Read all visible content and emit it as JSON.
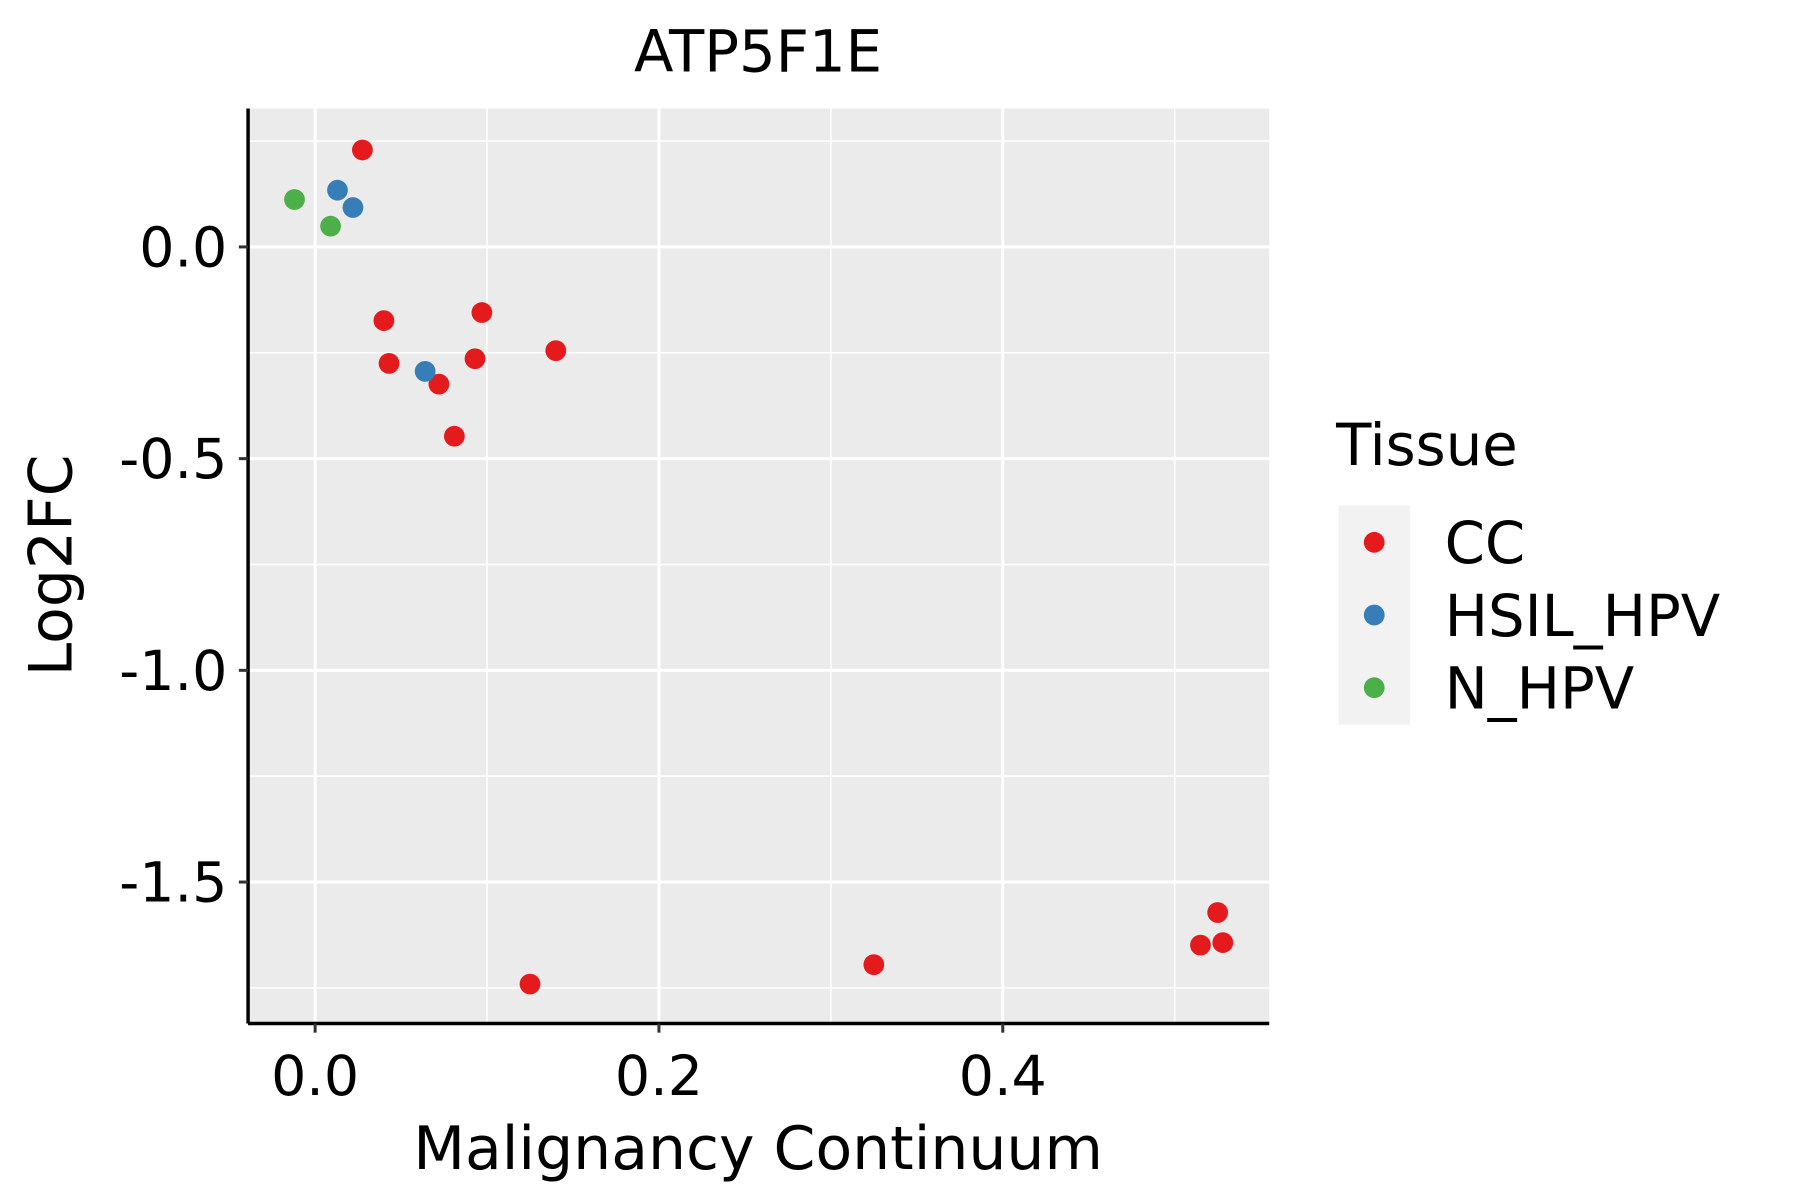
{
  "chart_data": {
    "type": "scatter",
    "title": "ATP5F1E",
    "xlabel": "Malignancy Continuum",
    "ylabel": "Log2FC",
    "xlim": [
      -0.039,
      0.555
    ],
    "ylim": [
      -1.834,
      0.327
    ],
    "xticks": [
      0.0,
      0.2,
      0.4
    ],
    "xtick_labels": [
      "0.0",
      "0.2",
      "0.4"
    ],
    "yticks": [
      0.0,
      -0.5,
      -1.0,
      -1.5
    ],
    "ytick_labels": [
      "0.0",
      "-0.5",
      "-1.0",
      "-1.5"
    ],
    "grid": true,
    "legend": {
      "title": "Tissue",
      "placement": "right"
    },
    "series": [
      {
        "name": "CC",
        "color": "#E41A1C",
        "points": [
          [
            0.0275,
            0.229
          ],
          [
            0.04,
            -0.174
          ],
          [
            0.043,
            -0.275
          ],
          [
            0.072,
            -0.324
          ],
          [
            0.081,
            -0.447
          ],
          [
            0.093,
            -0.264
          ],
          [
            0.097,
            -0.155
          ],
          [
            0.14,
            -0.245
          ],
          [
            0.125,
            -1.741
          ],
          [
            0.325,
            -1.695
          ],
          [
            0.515,
            -1.649
          ],
          [
            0.525,
            -1.572
          ],
          [
            0.528,
            -1.643
          ]
        ]
      },
      {
        "name": "HSIL_HPV",
        "color": "#377EB8",
        "points": [
          [
            0.013,
            0.134
          ],
          [
            0.022,
            0.093
          ],
          [
            0.064,
            -0.294
          ]
        ]
      },
      {
        "name": "N_HPV",
        "color": "#4DAF4A",
        "points": [
          [
            -0.012,
            0.112
          ],
          [
            0.009,
            0.049
          ]
        ]
      }
    ]
  }
}
